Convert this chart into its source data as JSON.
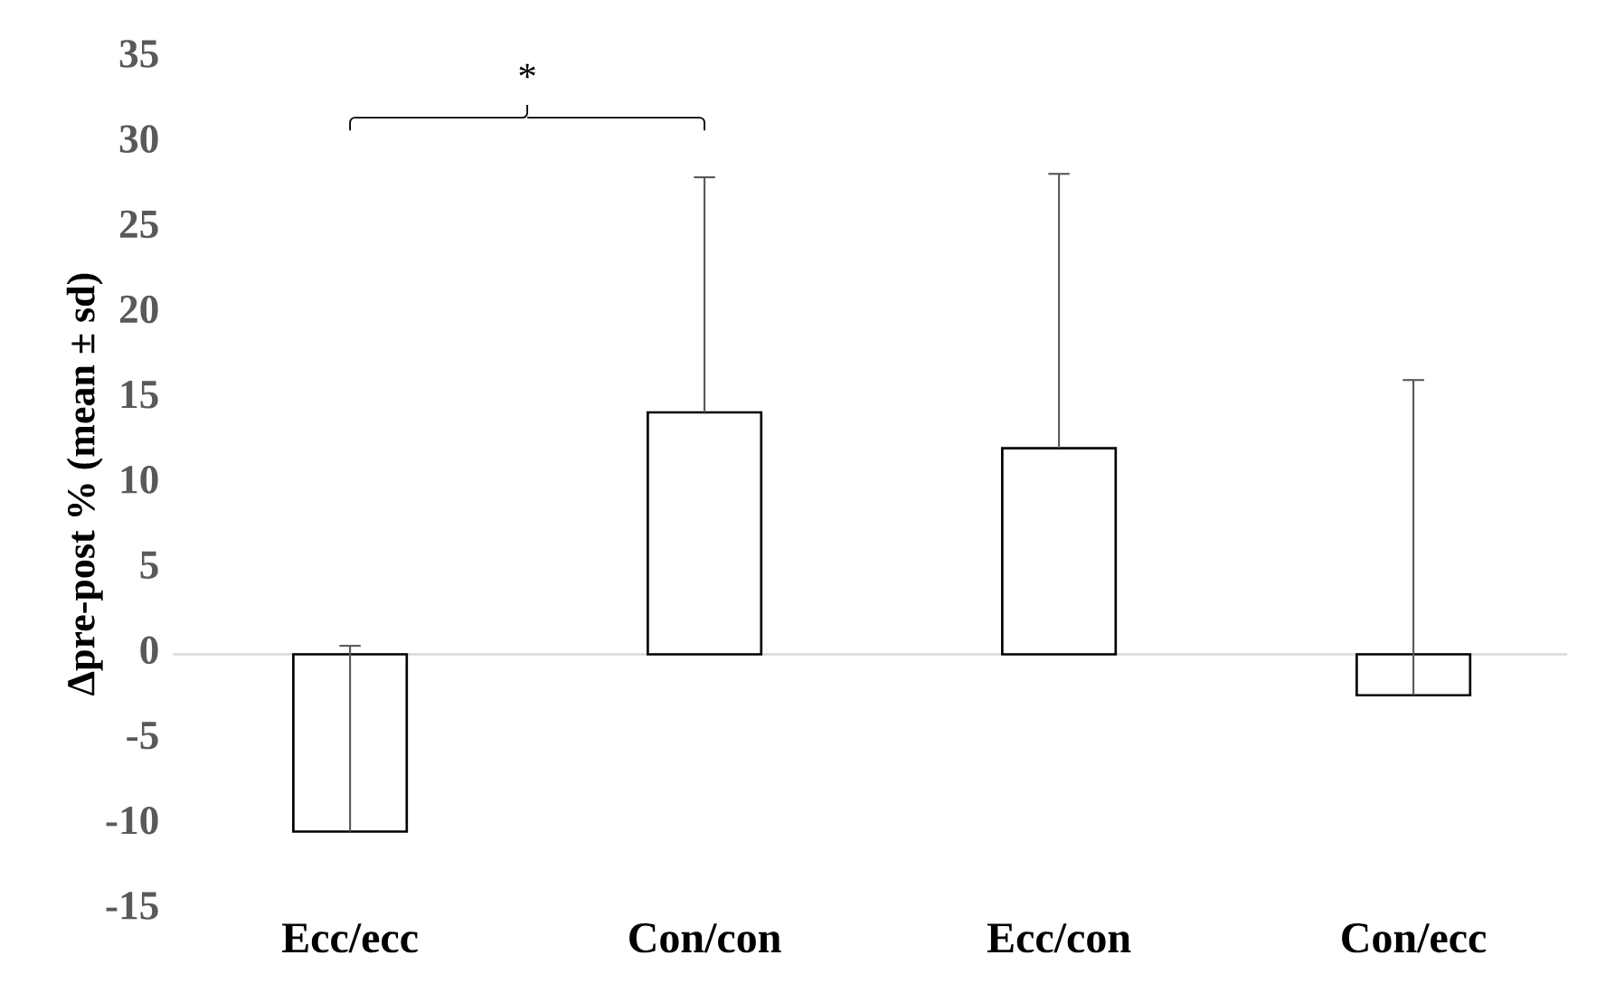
{
  "chart_data": {
    "type": "bar",
    "ylabel": "Δpre-post % (mean ± sd)",
    "categories": [
      "Ecc/ecc",
      "Con/con",
      "Ecc/con",
      "Con/ecc"
    ],
    "values": [
      -10.4,
      14.2,
      12.1,
      -2.4
    ],
    "errors": [
      [
        -10.4,
        0.5
      ],
      [
        14.2,
        28.0
      ],
      [
        12.1,
        28.2
      ],
      [
        -2.4,
        16.1
      ]
    ],
    "color": "#ffffff",
    "ylim": [
      -15,
      35
    ],
    "yticks": [
      -15,
      -10,
      -5,
      0,
      5,
      10,
      15,
      20,
      25,
      30,
      35
    ],
    "annotations": [
      "*"
    ]
  }
}
